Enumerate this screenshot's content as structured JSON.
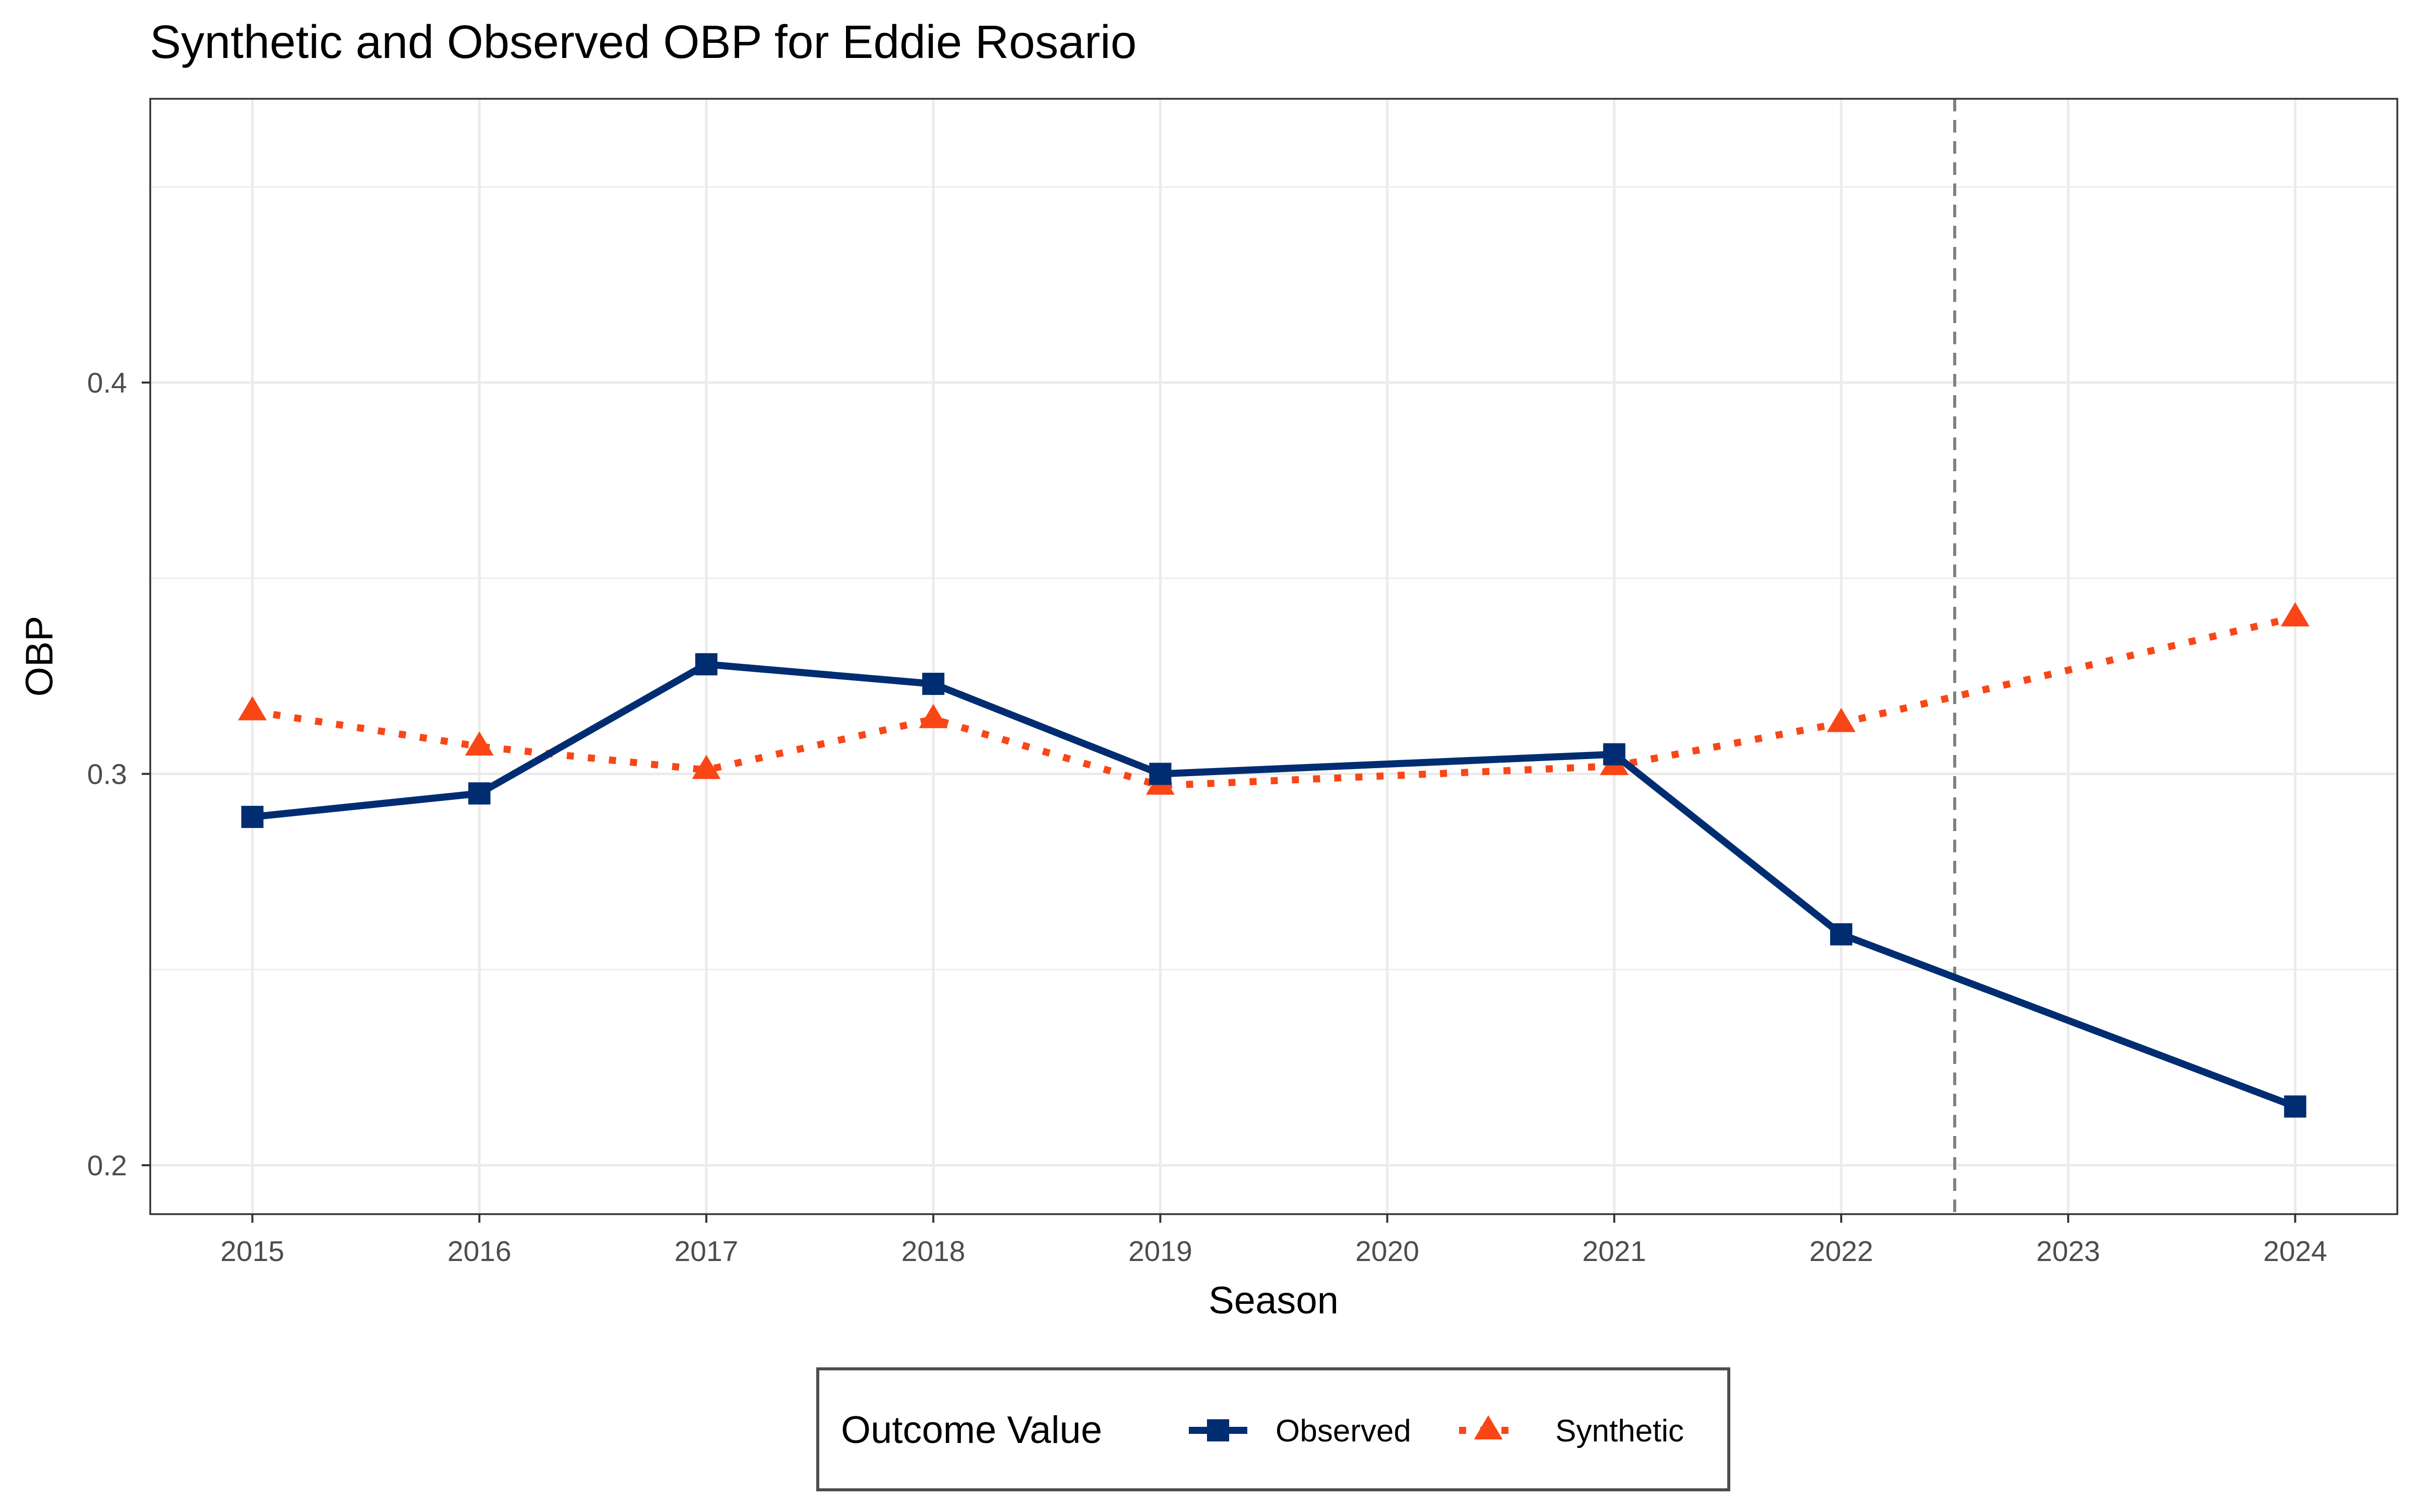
{
  "chart_data": {
    "type": "line",
    "title": "Synthetic and Observed OBP for Eddie Rosario",
    "xlabel": "Season",
    "ylabel": "OBP",
    "x": [
      2015,
      2016,
      2017,
      2018,
      2019,
      2020,
      2021,
      2022,
      2023,
      2024
    ],
    "xlim": [
      2014.55,
      2024.45
    ],
    "ylim": [
      0.1875,
      0.4725
    ],
    "y_ticks": [
      0.2,
      0.3,
      0.4
    ],
    "y_tick_labels": [
      "0.2",
      "0.3",
      "0.4"
    ],
    "x_tick_labels": [
      "2015",
      "2016",
      "2017",
      "2018",
      "2019",
      "2020",
      "2021",
      "2022",
      "2023",
      "2024"
    ],
    "grid": true,
    "vline": 2022.5,
    "series": [
      {
        "name": "Observed",
        "color": "#002d72",
        "marker": "square",
        "linestyle": "solid",
        "points": [
          [
            2015,
            0.289
          ],
          [
            2016,
            0.295
          ],
          [
            2017,
            0.328
          ],
          [
            2018,
            0.323
          ],
          [
            2019,
            0.3
          ],
          [
            2021,
            0.305
          ],
          [
            2022,
            0.259
          ],
          [
            2024,
            0.215
          ]
        ]
      },
      {
        "name": "Synthetic",
        "color": "#fa4616",
        "marker": "triangle",
        "linestyle": "dotted",
        "points": [
          [
            2015,
            0.316
          ],
          [
            2016,
            0.307
          ],
          [
            2017,
            0.301
          ],
          [
            2018,
            0.314
          ],
          [
            2019,
            0.297
          ],
          [
            2021,
            0.302
          ],
          [
            2022,
            0.313
          ],
          [
            2024,
            0.34
          ]
        ]
      }
    ],
    "legend": {
      "title": "Outcome Value",
      "position": "bottom"
    }
  }
}
